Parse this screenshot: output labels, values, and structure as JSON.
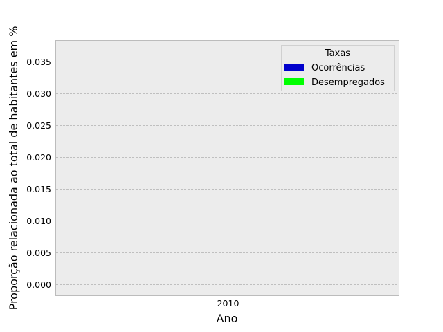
{
  "chart_data": {
    "type": "bar",
    "title": "",
    "xlabel": "Ano",
    "ylabel": "Proporção relacionada ao total de habitantes em %",
    "categories": [
      "2010"
    ],
    "series": [
      {
        "name": "Ocorrências",
        "values": [
          0
        ],
        "color": "#0000cc"
      },
      {
        "name": "Desempregados",
        "values": [
          0
        ],
        "color": "#00ff00"
      }
    ],
    "ylim": [
      -0.0017,
      0.0383
    ],
    "yticks": [
      0.0,
      0.005,
      0.01,
      0.015,
      0.02,
      0.025,
      0.03,
      0.035
    ],
    "ytick_labels": [
      "0.000",
      "0.005",
      "0.010",
      "0.015",
      "0.020",
      "0.025",
      "0.030",
      "0.035"
    ],
    "grid": true,
    "legend": {
      "title": "Taxas",
      "placement": "top-right"
    },
    "background_color": "#ececec"
  }
}
